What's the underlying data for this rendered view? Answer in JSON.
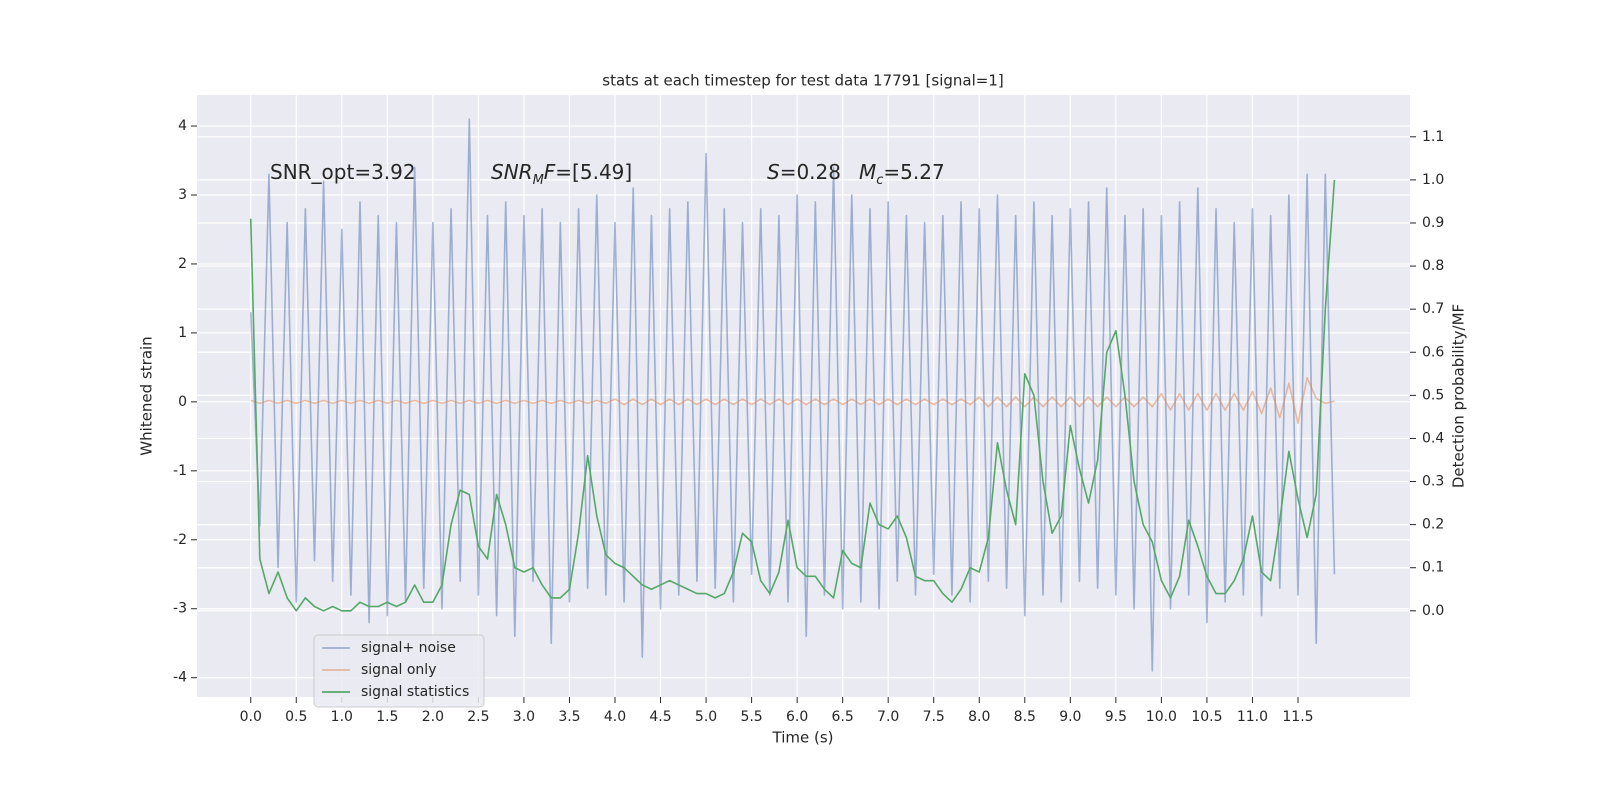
{
  "chart_data": {
    "type": "line",
    "title": "stats at each timestep for test data 17791 [signal=1]",
    "xlabel": "Time (s)",
    "ylabel": "Whitened strain",
    "y2label": "Detection probability/MF",
    "annotations": [
      {
        "parts": [
          {
            "text": "SNR_opt=3.92"
          }
        ]
      },
      {
        "parts": [
          {
            "text": "SNR",
            "italic": true
          },
          {
            "text": "M",
            "italic": true,
            "sub": true
          },
          {
            "text": "F",
            "italic": true
          },
          {
            "text": "=[5.49]"
          }
        ]
      },
      {
        "parts": [
          {
            "text": "S",
            "italic": true
          },
          {
            "text": "=0.28"
          }
        ]
      },
      {
        "parts": [
          {
            "text": "M",
            "italic": true
          },
          {
            "text": "c",
            "italic": true,
            "sub": true
          },
          {
            "text": "=5.27"
          }
        ]
      }
    ],
    "xlim": [
      -0.59,
      12.73
    ],
    "ylim": [
      -4.28,
      4.45
    ],
    "y2lim": [
      -0.2,
      1.197
    ],
    "xticks": [
      {
        "value": 0,
        "label": "0.0"
      },
      0.5,
      {
        "value": 1,
        "label": "1.0"
      },
      1.5,
      {
        "value": 2,
        "label": "2.0"
      },
      2.5,
      {
        "value": 3,
        "label": "3.0"
      },
      3.5,
      {
        "value": 4,
        "label": "4.0"
      },
      4.5,
      {
        "value": 5,
        "label": "5.0"
      },
      5.5,
      {
        "value": 6,
        "label": "6.0"
      },
      6.5,
      {
        "value": 7,
        "label": "7.0"
      },
      7.5,
      {
        "value": 8,
        "label": "8.0"
      },
      8.5,
      {
        "value": 9,
        "label": "9.0"
      },
      9.5,
      {
        "value": 10,
        "label": "10.0"
      },
      10.5,
      {
        "value": 11,
        "label": "11.0"
      },
      11.5
    ],
    "yticks": [
      -4,
      -3,
      -2,
      -1,
      0,
      1,
      2,
      3,
      4
    ],
    "y2ticks": [
      {
        "value": 0,
        "label": "0.0"
      },
      0.1,
      0.2,
      0.3,
      0.4,
      0.5,
      0.6,
      0.7,
      0.8,
      0.9,
      {
        "value": 1,
        "label": "1.0"
      },
      1.1
    ],
    "grid": true,
    "legend": "lower left",
    "x": [
      0,
      0.1,
      0.2,
      0.3,
      0.4,
      0.5,
      0.6,
      0.7,
      0.8,
      0.9,
      1,
      1.1,
      1.2,
      1.3,
      1.4,
      1.5,
      1.6,
      1.7,
      1.8,
      1.9,
      2,
      2.1,
      2.2,
      2.3,
      2.4,
      2.5,
      2.6,
      2.7,
      2.8,
      2.9,
      3,
      3.1,
      3.2,
      3.3,
      3.4,
      3.5,
      3.6,
      3.7,
      3.8,
      3.9,
      4,
      4.1,
      4.2,
      4.3,
      4.4,
      4.5,
      4.6,
      4.7,
      4.8,
      4.9,
      5,
      5.1,
      5.2,
      5.3,
      5.4,
      5.5,
      5.6,
      5.7,
      5.8,
      5.9,
      6,
      6.1,
      6.2,
      6.3,
      6.4,
      6.5,
      6.6,
      6.7,
      6.8,
      6.9,
      7,
      7.1,
      7.2,
      7.3,
      7.4,
      7.5,
      7.6,
      7.7,
      7.8,
      7.9,
      8,
      8.1,
      8.2,
      8.3,
      8.4,
      8.5,
      8.6,
      8.7,
      8.8,
      8.9,
      9,
      9.1,
      9.2,
      9.3,
      9.4,
      9.5,
      9.6,
      9.7,
      9.8,
      9.9,
      10,
      10.1,
      10.2,
      10.3,
      10.4,
      10.5,
      10.6,
      10.7,
      10.8,
      10.9,
      11,
      11.1,
      11.2,
      11.3,
      11.4,
      11.5,
      11.6,
      11.7,
      11.8,
      11.9
    ],
    "series": [
      {
        "name": "signal+ noise",
        "color": "#4c72b0",
        "opacity": 0.5,
        "axis": "y",
        "values": [
          1.3,
          -1.8,
          3.3,
          -2.4,
          2.6,
          -2.9,
          2.8,
          -2.3,
          3.2,
          -2.6,
          2.5,
          -2.8,
          2.9,
          -3.2,
          2.7,
          -3.1,
          2.6,
          -2.9,
          3.4,
          -2.7,
          2.6,
          -3.0,
          2.8,
          -2.6,
          4.1,
          -2.8,
          2.7,
          -3.1,
          2.9,
          -3.4,
          2.7,
          -2.6,
          2.8,
          -3.5,
          2.6,
          -2.9,
          2.8,
          -2.7,
          3.0,
          -2.8,
          2.6,
          -2.9,
          3.1,
          -3.7,
          2.7,
          -3.0,
          2.8,
          -2.8,
          2.9,
          -2.6,
          3.6,
          -2.7,
          2.8,
          -2.9,
          2.6,
          -2.5,
          2.8,
          -2.8,
          2.7,
          -2.9,
          3.0,
          -3.4,
          2.9,
          -2.8,
          3.4,
          -3.0,
          3.0,
          -2.9,
          2.8,
          -3.0,
          2.9,
          -2.6,
          2.7,
          -2.8,
          2.6,
          -2.5,
          2.7,
          -2.8,
          2.9,
          -2.9,
          2.8,
          -2.6,
          3.0,
          -2.7,
          2.7,
          -3.1,
          2.9,
          -2.8,
          2.7,
          -2.9,
          2.8,
          -2.6,
          2.9,
          -2.7,
          3.1,
          -2.8,
          2.7,
          -3.0,
          2.8,
          -3.9,
          2.7,
          -3.0,
          2.9,
          -2.8,
          3.1,
          -3.2,
          2.8,
          -2.9,
          2.6,
          -2.8,
          2.8,
          -3.1,
          2.7,
          -2.7,
          3.0,
          -2.8,
          3.3,
          -3.5,
          3.3,
          -2.5
        ]
      },
      {
        "name": "signal only",
        "color": "#dd8452",
        "opacity": 0.5,
        "axis": "y",
        "values": [
          0.02,
          -0.02,
          0.02,
          -0.02,
          0.02,
          -0.02,
          0.02,
          -0.02,
          0.02,
          -0.02,
          0.02,
          -0.02,
          0.02,
          -0.02,
          0.02,
          -0.02,
          0.02,
          -0.02,
          0.02,
          -0.02,
          0.02,
          -0.02,
          0.02,
          -0.02,
          0.02,
          -0.02,
          0.02,
          -0.02,
          0.02,
          -0.02,
          0.02,
          -0.02,
          0.02,
          -0.02,
          0.02,
          -0.02,
          0.02,
          -0.02,
          0.02,
          -0.02,
          0.04,
          -0.04,
          0.04,
          -0.04,
          0.04,
          -0.04,
          0.04,
          -0.04,
          0.04,
          -0.04,
          0.04,
          -0.04,
          0.04,
          -0.04,
          0.04,
          -0.04,
          0.04,
          -0.04,
          0.04,
          -0.04,
          0.04,
          -0.04,
          0.04,
          -0.04,
          0.04,
          -0.04,
          0.04,
          -0.04,
          0.04,
          -0.04,
          0.04,
          -0.04,
          0.04,
          -0.04,
          0.04,
          -0.04,
          0.04,
          -0.04,
          0.04,
          -0.04,
          0.07,
          -0.07,
          0.07,
          -0.07,
          0.07,
          -0.07,
          0.07,
          -0.07,
          0.07,
          -0.07,
          0.07,
          -0.07,
          0.07,
          -0.07,
          0.07,
          -0.07,
          0.07,
          -0.07,
          0.07,
          -0.07,
          0.12,
          -0.12,
          0.12,
          -0.12,
          0.12,
          -0.12,
          0.12,
          -0.12,
          0.12,
          -0.12,
          0.15,
          -0.17,
          0.2,
          -0.23,
          0.27,
          -0.31,
          0.35,
          0.05,
          -0.02,
          0.01
        ]
      },
      {
        "name": "signal statistics",
        "color": "#55a868",
        "opacity": 1,
        "axis": "y2",
        "values": [
          0.91,
          0.12,
          0.04,
          0.09,
          0.03,
          0.0,
          0.03,
          0.01,
          0.0,
          0.01,
          0.0,
          0.0,
          0.02,
          0.01,
          0.01,
          0.02,
          0.01,
          0.02,
          0.06,
          0.02,
          0.02,
          0.06,
          0.2,
          0.28,
          0.27,
          0.15,
          0.12,
          0.27,
          0.2,
          0.1,
          0.09,
          0.1,
          0.06,
          0.03,
          0.03,
          0.05,
          0.18,
          0.36,
          0.22,
          0.13,
          0.11,
          0.1,
          0.08,
          0.06,
          0.05,
          0.06,
          0.07,
          0.06,
          0.05,
          0.04,
          0.04,
          0.03,
          0.04,
          0.09,
          0.18,
          0.16,
          0.07,
          0.04,
          0.09,
          0.21,
          0.1,
          0.08,
          0.08,
          0.05,
          0.03,
          0.14,
          0.11,
          0.1,
          0.25,
          0.2,
          0.19,
          0.22,
          0.17,
          0.08,
          0.07,
          0.07,
          0.04,
          0.02,
          0.05,
          0.1,
          0.09,
          0.17,
          0.39,
          0.28,
          0.2,
          0.55,
          0.5,
          0.3,
          0.18,
          0.22,
          0.43,
          0.33,
          0.25,
          0.35,
          0.6,
          0.65,
          0.5,
          0.3,
          0.2,
          0.16,
          0.07,
          0.03,
          0.08,
          0.21,
          0.15,
          0.08,
          0.04,
          0.04,
          0.07,
          0.12,
          0.22,
          0.09,
          0.07,
          0.21,
          0.37,
          0.26,
          0.17,
          0.27,
          0.7,
          1.0
        ]
      }
    ]
  }
}
